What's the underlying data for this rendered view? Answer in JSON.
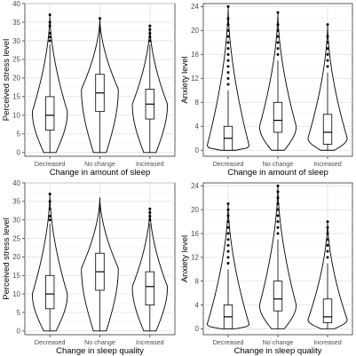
{
  "chart_data": [
    {
      "type": "violin",
      "xlabel": "Change in amount of sleep",
      "ylabel": "Perceived stress level",
      "categories": [
        "Decreased",
        "No change",
        "Increased"
      ],
      "ylim": [
        -1,
        40
      ],
      "yticks": [
        0,
        5,
        10,
        15,
        20,
        25,
        30,
        35,
        40
      ],
      "grid": true,
      "boxes": [
        {
          "q1": 6,
          "median": 10,
          "q3": 15,
          "whisker_low": 0,
          "whisker_high": 29,
          "outliers": [
            30,
            31,
            32,
            34,
            35,
            37
          ]
        },
        {
          "q1": 11,
          "median": 16,
          "q3": 21,
          "whisker_low": 0,
          "whisker_high": 35,
          "outliers": [
            36
          ]
        },
        {
          "q1": 9,
          "median": 13,
          "q3": 17,
          "whisker_low": 0,
          "whisker_high": 29,
          "outliers": [
            30,
            31,
            32,
            33,
            34
          ]
        }
      ],
      "violins": [
        {
          "min": 0,
          "max": 37,
          "peak": 11,
          "width": 0.78
        },
        {
          "min": 0,
          "max": 36,
          "peak": 17,
          "width": 0.82
        },
        {
          "min": 0,
          "max": 34,
          "peak": 13,
          "width": 0.78
        }
      ]
    },
    {
      "type": "violin",
      "xlabel": "Change in amount of sleep",
      "ylabel": "Anxiety level",
      "categories": [
        "Decreased",
        "No change",
        "Increased"
      ],
      "ylim": [
        -1,
        24.5
      ],
      "yticks": [
        0,
        4,
        8,
        12,
        16,
        20,
        24
      ],
      "grid": true,
      "boxes": [
        {
          "q1": 0,
          "median": 2,
          "q3": 4,
          "whisker_low": 0,
          "whisker_high": 10,
          "outliers": [
            11,
            12,
            13,
            14,
            15,
            16,
            17,
            18,
            19,
            20,
            21,
            22,
            24
          ]
        },
        {
          "q1": 3,
          "median": 5,
          "q3": 8,
          "whisker_low": 0,
          "whisker_high": 15,
          "outliers": [
            16,
            17,
            18,
            19,
            20,
            21,
            23
          ]
        },
        {
          "q1": 1,
          "median": 3,
          "q3": 6,
          "whisker_low": 0,
          "whisker_high": 13,
          "outliers": [
            14,
            15,
            16,
            17,
            18,
            19,
            21
          ]
        }
      ],
      "violins": [
        {
          "min": 0,
          "max": 24,
          "peak": 0.6,
          "width": 0.95
        },
        {
          "min": 0,
          "max": 23,
          "peak": 4,
          "width": 0.82
        },
        {
          "min": 0,
          "max": 21,
          "peak": 2,
          "width": 0.88
        }
      ]
    },
    {
      "type": "violin",
      "xlabel": "Change in sleep quality",
      "ylabel": "Perceived stress level",
      "categories": [
        "Decreased",
        "No change",
        "Increased"
      ],
      "ylim": [
        -1,
        40
      ],
      "yticks": [
        0,
        5,
        10,
        15,
        20,
        25,
        30,
        35,
        40
      ],
      "grid": true,
      "boxes": [
        {
          "q1": 6,
          "median": 10,
          "q3": 15,
          "whisker_low": 0,
          "whisker_high": 29,
          "outliers": [
            30,
            31,
            33,
            35,
            37
          ]
        },
        {
          "q1": 11,
          "median": 16,
          "q3": 21,
          "whisker_low": 0,
          "whisker_high": 36,
          "outliers": []
        },
        {
          "q1": 7,
          "median": 12,
          "q3": 16,
          "whisker_low": 0,
          "whisker_high": 29,
          "outliers": [
            30,
            31,
            32,
            33
          ]
        }
      ],
      "violins": [
        {
          "min": 0,
          "max": 37,
          "peak": 10,
          "width": 0.78
        },
        {
          "min": 0,
          "max": 36,
          "peak": 17,
          "width": 0.82
        },
        {
          "min": 0,
          "max": 33,
          "peak": 12,
          "width": 0.78
        }
      ]
    },
    {
      "type": "violin",
      "xlabel": "Change in sleep quality",
      "ylabel": "Anxiety level",
      "categories": [
        "Decreased",
        "No change",
        "Increased"
      ],
      "ylim": [
        -1,
        24.5
      ],
      "yticks": [
        0,
        4,
        8,
        12,
        16,
        20,
        24
      ],
      "grid": true,
      "boxes": [
        {
          "q1": 0,
          "median": 2,
          "q3": 4,
          "whisker_low": 0,
          "whisker_high": 10,
          "outliers": [
            11,
            12,
            13,
            14,
            15,
            16,
            17,
            18,
            19,
            20,
            21
          ]
        },
        {
          "q1": 3,
          "median": 5,
          "q3": 8,
          "whisker_low": 0,
          "whisker_high": 15,
          "outliers": [
            16,
            17,
            18,
            19,
            20,
            21,
            22,
            23,
            24
          ]
        },
        {
          "q1": 1,
          "median": 2,
          "q3": 5,
          "whisker_low": 0,
          "whisker_high": 11,
          "outliers": [
            12,
            13,
            14,
            15,
            16,
            17,
            18
          ]
        }
      ],
      "violins": [
        {
          "min": 0,
          "max": 21,
          "peak": 0.6,
          "width": 0.95
        },
        {
          "min": 0,
          "max": 24,
          "peak": 4,
          "width": 0.82
        },
        {
          "min": 0,
          "max": 18,
          "peak": 1.5,
          "width": 0.88
        }
      ]
    }
  ]
}
